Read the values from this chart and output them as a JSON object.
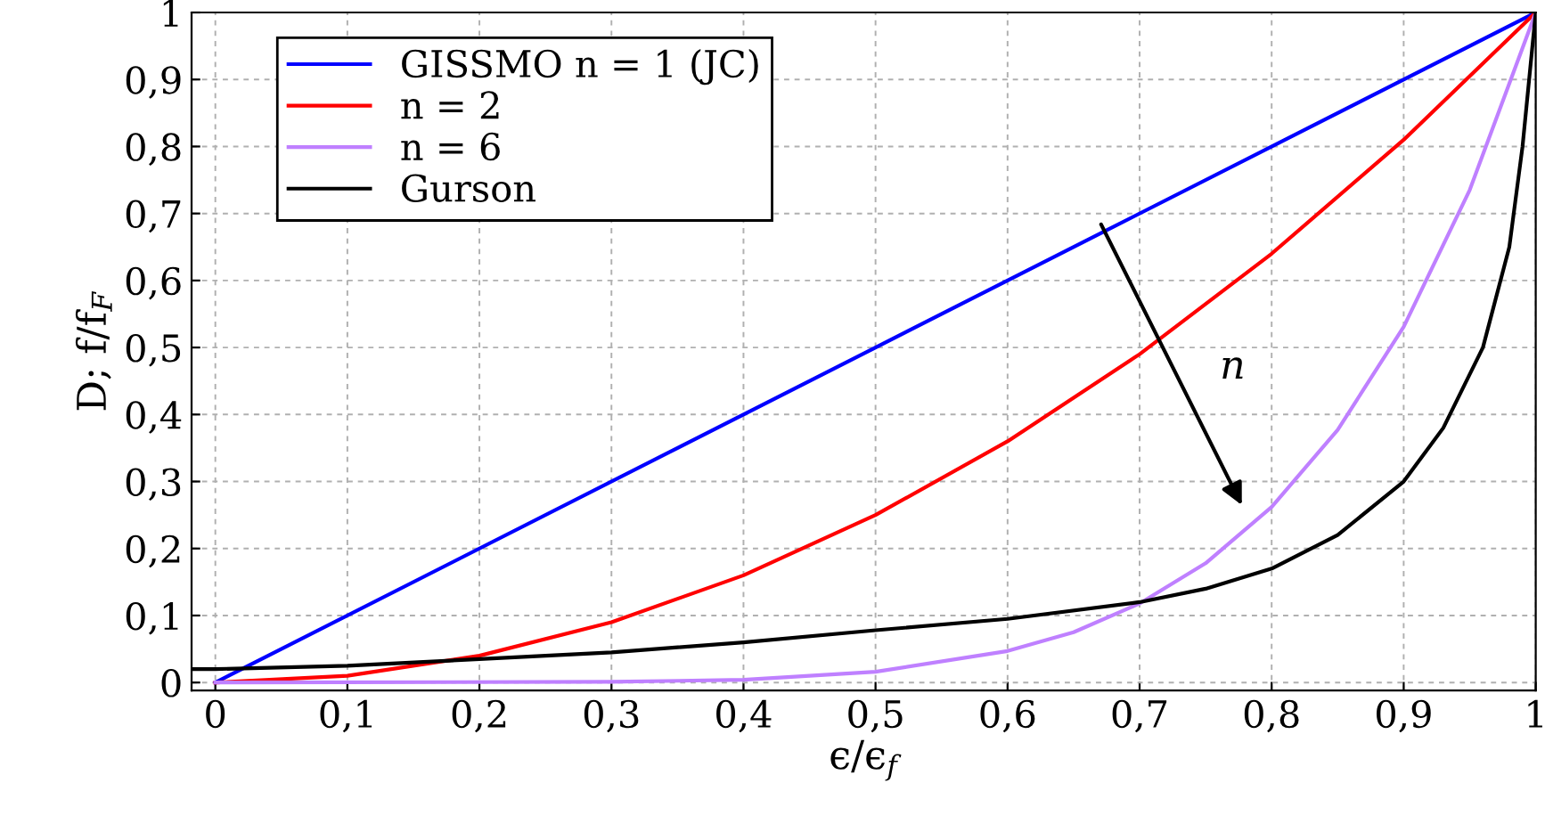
{
  "chart_data": {
    "type": "line",
    "xlabel": "ϵ/ϵ$_{f}$",
    "ylabel": "D; f/f$_{F}$",
    "xlim": [
      -0.018,
      1.0
    ],
    "ylim": [
      -0.012,
      1.0
    ],
    "xticks": [
      0,
      {
        "value": 0.1,
        "label": "0,1"
      },
      {
        "value": 0.2,
        "label": "0,2"
      },
      {
        "value": 0.3,
        "label": "0,3"
      },
      {
        "value": 0.4,
        "label": "0,4"
      },
      {
        "value": 0.5,
        "label": "0,5"
      },
      {
        "value": 0.6,
        "label": "0,6"
      },
      {
        "value": 0.7,
        "label": "0,7"
      },
      {
        "value": 0.8,
        "label": "0,8"
      },
      {
        "value": 0.9,
        "label": "0,9"
      },
      1
    ],
    "yticks": [
      0,
      {
        "value": 0.1,
        "label": "0,1"
      },
      {
        "value": 0.2,
        "label": "0,2"
      },
      {
        "value": 0.3,
        "label": "0,3"
      },
      {
        "value": 0.4,
        "label": "0,4"
      },
      {
        "value": 0.5,
        "label": "0,5"
      },
      {
        "value": 0.6,
        "label": "0,6"
      },
      {
        "value": 0.7,
        "label": "0,7"
      },
      {
        "value": 0.8,
        "label": "0,8"
      },
      {
        "value": 0.9,
        "label": "0,9"
      },
      1
    ],
    "grid": true,
    "legend": "top left",
    "marker": "none",
    "line_style": "solid",
    "annotations": [
      "n"
    ],
    "series": [
      {
        "name": "GISSMO n = 1 (JC)",
        "color": "#0000ff",
        "x": [
          0,
          0.5,
          1
        ],
        "values": [
          0,
          0.5,
          1
        ]
      },
      {
        "name": "n = 2",
        "color": "#ff0000",
        "x": [
          0,
          0.1,
          0.2,
          0.3,
          0.4,
          0.5,
          0.6,
          0.7,
          0.8,
          0.9,
          1
        ],
        "values": [
          0,
          0.01,
          0.04,
          0.09,
          0.16,
          0.25,
          0.36,
          0.49,
          0.64,
          0.81,
          1
        ]
      },
      {
        "name": "n = 6",
        "color": "#bf80ff",
        "x": [
          0,
          0.3,
          0.4,
          0.5,
          0.6,
          0.65,
          0.7,
          0.75,
          0.8,
          0.85,
          0.9,
          0.95,
          1
        ],
        "values": [
          0,
          0.001,
          0.004,
          0.016,
          0.047,
          0.075,
          0.118,
          0.178,
          0.262,
          0.377,
          0.531,
          0.735,
          1
        ]
      },
      {
        "name": "Gurson",
        "color": "#000000",
        "x": [
          -0.018,
          0,
          0.1,
          0.2,
          0.3,
          0.4,
          0.5,
          0.6,
          0.7,
          0.75,
          0.8,
          0.85,
          0.9,
          0.93,
          0.96,
          0.98,
          0.99,
          1
        ],
        "values": [
          0.02,
          0.02,
          0.025,
          0.035,
          0.045,
          0.06,
          0.078,
          0.095,
          0.12,
          0.14,
          0.17,
          0.22,
          0.3,
          0.38,
          0.5,
          0.65,
          0.8,
          1
        ]
      }
    ]
  }
}
